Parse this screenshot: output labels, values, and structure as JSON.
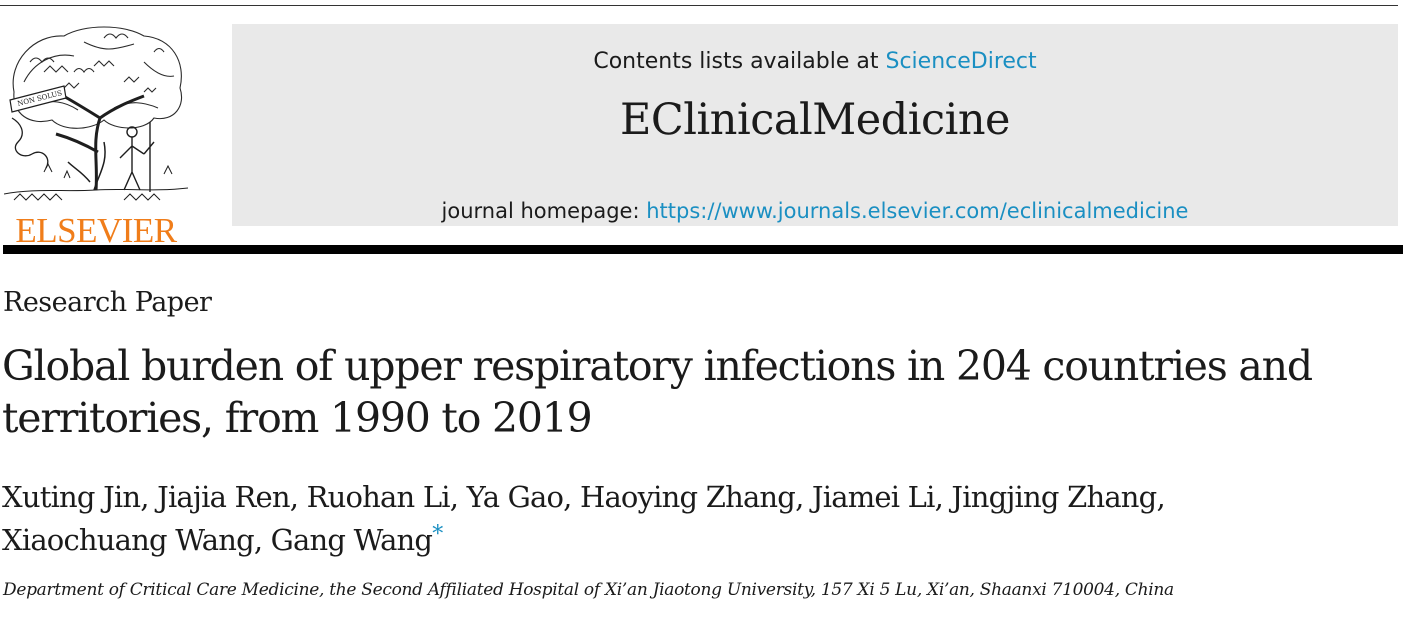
{
  "publisher": {
    "name": "ELSEVIER",
    "logo_icon": "elsevier-tree-logo",
    "logo_motto": "NON SOLUS",
    "brand_color": "#f07d1a"
  },
  "banner": {
    "contents_prefix": "Contents lists available at ",
    "contents_link": "ScienceDirect",
    "journal_title": "EClinicalMedicine",
    "homepage_prefix": "journal homepage: ",
    "homepage_link": "https://www.journals.elsevier.com/eclinicalmedicine",
    "link_color": "#1a8fc2",
    "background_color": "#e9e9e9"
  },
  "article": {
    "type": "Research Paper",
    "title": "Global burden of upper respiratory infections in 204 countries and territories, from 1990 to 2019",
    "authors_line1": "Xuting Jin, Jiajia Ren, Ruohan Li, Ya Gao, Haoying Zhang, Jiamei Li, Jingjing Zhang,",
    "authors_line2": "Xiaochuang Wang, Gang Wang",
    "corresponding_mark": "*",
    "affiliation": "Department of Critical Care Medicine, the Second Affiliated Hospital of Xi’an Jiaotong University, 157 Xi 5 Lu, Xi’an, Shaanxi 710004, China"
  }
}
